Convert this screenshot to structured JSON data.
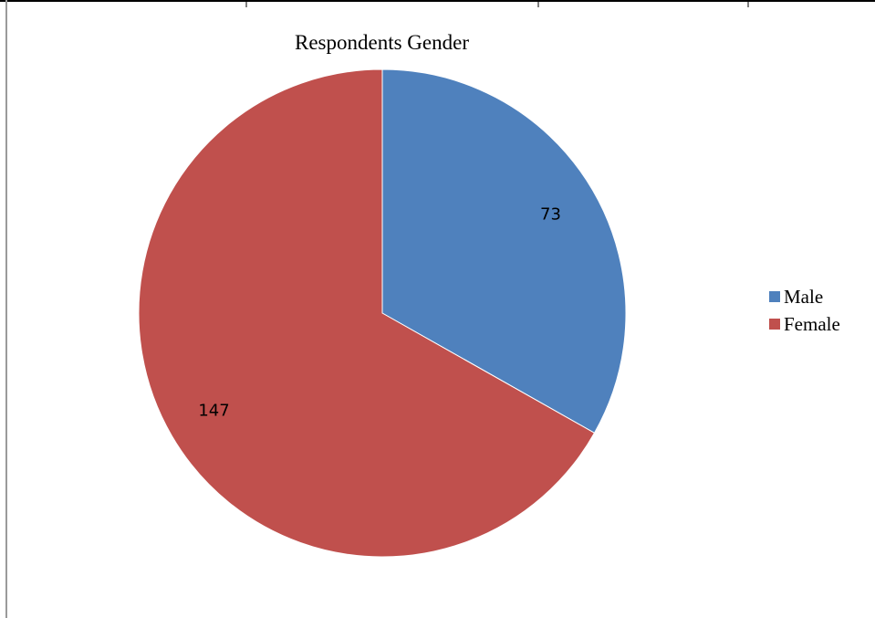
{
  "chart_data": {
    "type": "pie",
    "title": "Respondents Gender",
    "categories": [
      "Male",
      "Female"
    ],
    "values": [
      73,
      147
    ],
    "colors": [
      "#4F81BD",
      "#C0504D"
    ],
    "data_labels": [
      "73",
      "147"
    ],
    "legend_position": "right",
    "start_angle_degrees": 0,
    "direction": "clockwise"
  }
}
